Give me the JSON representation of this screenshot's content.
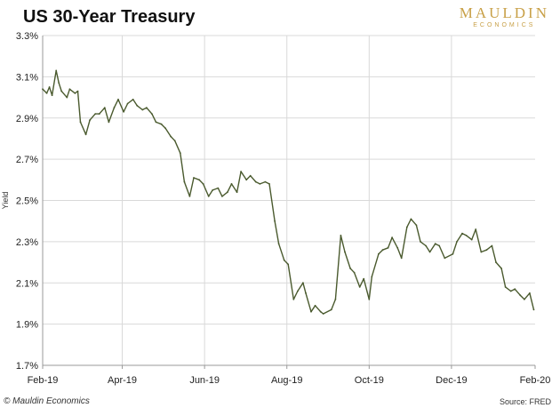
{
  "header": {
    "title": "US 30-Year Treasury",
    "logo_main": "MAULDIN",
    "logo_sub": "ECONOMICS"
  },
  "footer": {
    "copyright": "© Mauldin Economics",
    "source": "Source: FRED"
  },
  "colors": {
    "line": "#4a5a2e",
    "grid": "#d9d9d9",
    "axis": "#999999",
    "logo": "#c8a047"
  },
  "chart_data": {
    "type": "line",
    "title": "US 30-Year Treasury",
    "xlabel": "",
    "ylabel": "Yield",
    "ylim": [
      1.7,
      3.3
    ],
    "yticks": [
      1.7,
      1.9,
      2.1,
      2.3,
      2.5,
      2.7,
      2.9,
      3.1,
      3.3
    ],
    "ytick_labels": [
      "1.7%",
      "1.9%",
      "2.1%",
      "2.3%",
      "2.5%",
      "2.7%",
      "2.9%",
      "3.1%",
      "3.3%"
    ],
    "xticks": [
      "2019-02-01",
      "2019-04-01",
      "2019-06-01",
      "2019-08-01",
      "2019-10-01",
      "2019-12-01",
      "2020-02-01"
    ],
    "xtick_labels": [
      "Feb-19",
      "Apr-19",
      "Jun-19",
      "Aug-19",
      "Oct-19",
      "Dec-19",
      "Feb-20"
    ],
    "xlim": [
      "2019-02-01",
      "2020-02-01"
    ],
    "grid": true,
    "series": [
      {
        "x": [
          "2019-02-01",
          "2019-02-04",
          "2019-02-06",
          "2019-02-08",
          "2019-02-11",
          "2019-02-13",
          "2019-02-15",
          "2019-02-19",
          "2019-02-21",
          "2019-02-25",
          "2019-02-27",
          "2019-03-01",
          "2019-03-05",
          "2019-03-08",
          "2019-03-12",
          "2019-03-15",
          "2019-03-19",
          "2019-03-22",
          "2019-03-26",
          "2019-03-29",
          "2019-04-02",
          "2019-04-05",
          "2019-04-09",
          "2019-04-12",
          "2019-04-16",
          "2019-04-19",
          "2019-04-23",
          "2019-04-26",
          "2019-04-30",
          "2019-05-03",
          "2019-05-07",
          "2019-05-10",
          "2019-05-14",
          "2019-05-17",
          "2019-05-21",
          "2019-05-24",
          "2019-05-28",
          "2019-05-31",
          "2019-06-04",
          "2019-06-07",
          "2019-06-11",
          "2019-06-14",
          "2019-06-18",
          "2019-06-21",
          "2019-06-25",
          "2019-06-28",
          "2019-07-02",
          "2019-07-05",
          "2019-07-09",
          "2019-07-12",
          "2019-07-16",
          "2019-07-19",
          "2019-07-23",
          "2019-07-26",
          "2019-07-30",
          "2019-08-02",
          "2019-08-06",
          "2019-08-09",
          "2019-08-13",
          "2019-08-15",
          "2019-08-19",
          "2019-08-22",
          "2019-08-26",
          "2019-08-28",
          "2019-09-03",
          "2019-09-06",
          "2019-09-10",
          "2019-09-13",
          "2019-09-17",
          "2019-09-20",
          "2019-09-24",
          "2019-09-27",
          "2019-10-01",
          "2019-10-03",
          "2019-10-08",
          "2019-10-11",
          "2019-10-15",
          "2019-10-18",
          "2019-10-22",
          "2019-10-25",
          "2019-10-29",
          "2019-11-01",
          "2019-11-05",
          "2019-11-08",
          "2019-11-12",
          "2019-11-15",
          "2019-11-19",
          "2019-11-22",
          "2019-11-26",
          "2019-12-02",
          "2019-12-05",
          "2019-12-09",
          "2019-12-12",
          "2019-12-16",
          "2019-12-19",
          "2019-12-23",
          "2019-12-27",
          "2019-12-31",
          "2020-01-03",
          "2020-01-07",
          "2020-01-10",
          "2020-01-14",
          "2020-01-17",
          "2020-01-21",
          "2020-01-24",
          "2020-01-28",
          "2020-01-31"
        ],
        "y": [
          3.04,
          3.02,
          3.05,
          3.01,
          3.13,
          3.07,
          3.03,
          3.0,
          3.04,
          3.02,
          3.03,
          2.88,
          2.82,
          2.89,
          2.92,
          2.92,
          2.95,
          2.88,
          2.95,
          2.99,
          2.93,
          2.97,
          2.99,
          2.96,
          2.94,
          2.95,
          2.92,
          2.88,
          2.87,
          2.85,
          2.81,
          2.79,
          2.73,
          2.59,
          2.52,
          2.61,
          2.6,
          2.58,
          2.52,
          2.55,
          2.56,
          2.52,
          2.54,
          2.58,
          2.54,
          2.64,
          2.6,
          2.62,
          2.59,
          2.58,
          2.59,
          2.58,
          2.4,
          2.29,
          2.21,
          2.19,
          2.02,
          2.06,
          2.1,
          2.05,
          1.96,
          1.99,
          1.96,
          1.95,
          1.97,
          2.02,
          2.33,
          2.25,
          2.17,
          2.15,
          2.08,
          2.12,
          2.02,
          2.13,
          2.24,
          2.26,
          2.27,
          2.32,
          2.27,
          2.22,
          2.37,
          2.41,
          2.38,
          2.3,
          2.28,
          2.25,
          2.29,
          2.28,
          2.22,
          2.24,
          2.3,
          2.34,
          2.33,
          2.31,
          2.36,
          2.25,
          2.26,
          2.28,
          2.2,
          2.17,
          2.08,
          2.06,
          2.07,
          2.04,
          2.02,
          2.05,
          1.97
        ]
      }
    ]
  }
}
